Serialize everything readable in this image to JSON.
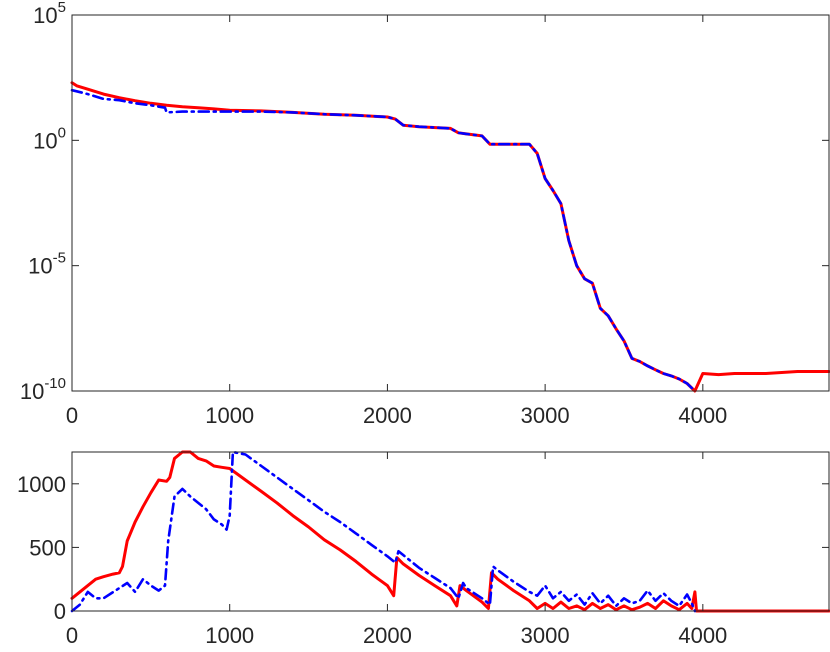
{
  "chart_data": [
    {
      "type": "line",
      "yscale": "log",
      "xlim": [
        0,
        4800
      ],
      "ylim": [
        1e-10,
        100000.0
      ],
      "xticks": [
        0,
        1000,
        2000,
        3000,
        4000
      ],
      "xtick_labels": [
        "0",
        "1000",
        "2000",
        "3000",
        "4000"
      ],
      "yticks": [
        1e-10,
        1e-05,
        1,
        100000.0
      ],
      "ytick_labels": [
        {
          "base": "10",
          "exp": "-10"
        },
        {
          "base": "10",
          "exp": "-5"
        },
        {
          "base": "10",
          "exp": "0"
        },
        {
          "base": "10",
          "exp": "5"
        }
      ],
      "grid": false,
      "series": [
        {
          "color": "#ff0000",
          "style": "solid",
          "x": [
            0,
            30,
            100,
            200,
            300,
            400,
            500,
            600,
            700,
            800,
            900,
            1000,
            1200,
            1400,
            1600,
            1800,
            2000,
            2050,
            2100,
            2200,
            2400,
            2450,
            2500,
            2600,
            2650,
            2700,
            2800,
            2900,
            2950,
            3000,
            3050,
            3100,
            3150,
            3200,
            3250,
            3300,
            3350,
            3400,
            3450,
            3500,
            3550,
            3600,
            3650,
            3700,
            3750,
            3800,
            3850,
            3900,
            3950,
            4000,
            4100,
            4200,
            4400,
            4600,
            4800
          ],
          "y": [
            200,
            150,
            110,
            70,
            50,
            38,
            30,
            25,
            22,
            20,
            18,
            16,
            15,
            13,
            11,
            10,
            8.5,
            7,
            4,
            3.5,
            3.0,
            2.0,
            1.8,
            1.5,
            0.7,
            0.7,
            0.7,
            0.7,
            0.3,
            0.03,
            0.01,
            0.003,
            0.0001,
            1e-05,
            3e-06,
            2e-06,
            2e-07,
            1e-07,
            3e-08,
            1e-08,
            2e-09,
            1.5e-09,
            1e-09,
            7e-10,
            5e-10,
            4e-10,
            3e-10,
            2e-10,
            1e-10,
            5e-10,
            4.5e-10,
            5e-10,
            5e-10,
            6e-10,
            6e-10
          ]
        },
        {
          "color": "#0000ff",
          "style": "dashdot",
          "x": [
            0,
            30,
            100,
            200,
            300,
            400,
            500,
            590,
            600,
            700,
            800,
            900,
            1000,
            1200,
            1400,
            1600,
            1800,
            2000,
            2050,
            2100,
            2200,
            2400,
            2450,
            2500,
            2600,
            2650,
            2700,
            2800,
            2900,
            2950,
            3000,
            3050,
            3100,
            3150,
            3200,
            3250,
            3300,
            3350,
            3400,
            3450,
            3500,
            3550,
            3600,
            3650,
            3700,
            3750,
            3800,
            3850,
            3900,
            3950
          ],
          "y": [
            100,
            90,
            70,
            45,
            40,
            30,
            25,
            20,
            13,
            14,
            14,
            14,
            14,
            14,
            13,
            11,
            10,
            8.5,
            7,
            4,
            3.5,
            3.0,
            2.0,
            1.8,
            1.5,
            0.7,
            0.7,
            0.7,
            0.7,
            0.3,
            0.03,
            0.01,
            0.003,
            0.0001,
            1e-05,
            3e-06,
            2e-06,
            2e-07,
            1e-07,
            3e-08,
            1e-08,
            2e-09,
            1.5e-09,
            1e-09,
            7e-10,
            5e-10,
            4e-10,
            3e-10,
            2e-10,
            1e-10
          ]
        }
      ]
    },
    {
      "type": "line",
      "xlim": [
        0,
        4800
      ],
      "ylim": [
        0,
        1250
      ],
      "xticks": [
        0,
        1000,
        2000,
        3000,
        4000
      ],
      "xtick_labels": [
        "0",
        "1000",
        "2000",
        "3000",
        "4000"
      ],
      "yticks": [
        0,
        500,
        1000
      ],
      "ytick_labels": [
        "0",
        "500",
        "1000"
      ],
      "grid": false,
      "series": [
        {
          "color": "#ff0000",
          "style": "solid",
          "x": [
            0,
            50,
            100,
            150,
            200,
            260,
            300,
            320,
            350,
            400,
            450,
            500,
            550,
            600,
            620,
            650,
            700,
            750,
            800,
            850,
            900,
            950,
            1000,
            1100,
            1200,
            1300,
            1400,
            1500,
            1600,
            1700,
            1800,
            1900,
            2000,
            2040,
            2060,
            2100,
            2200,
            2300,
            2400,
            2440,
            2460,
            2500,
            2600,
            2640,
            2660,
            2700,
            2800,
            2900,
            2950,
            3000,
            3050,
            3100,
            3150,
            3200,
            3250,
            3300,
            3350,
            3400,
            3450,
            3500,
            3550,
            3600,
            3650,
            3700,
            3750,
            3800,
            3850,
            3900,
            3930,
            3950,
            3960,
            4000,
            4200,
            4400,
            4600,
            4800
          ],
          "y": [
            100,
            150,
            200,
            250,
            270,
            290,
            300,
            350,
            550,
            700,
            820,
            930,
            1030,
            1020,
            1050,
            1200,
            1270,
            1250,
            1200,
            1180,
            1140,
            1130,
            1120,
            1030,
            940,
            850,
            750,
            660,
            560,
            480,
            390,
            290,
            200,
            120,
            420,
            370,
            280,
            200,
            120,
            40,
            200,
            160,
            70,
            20,
            300,
            250,
            160,
            80,
            20,
            60,
            20,
            70,
            20,
            40,
            10,
            60,
            20,
            50,
            10,
            40,
            10,
            30,
            60,
            20,
            80,
            40,
            10,
            60,
            20,
            150,
            0,
            0,
            0,
            0,
            0,
            0
          ]
        },
        {
          "color": "#0000ff",
          "style": "dashdot",
          "x": [
            0,
            50,
            100,
            150,
            200,
            300,
            350,
            400,
            450,
            500,
            550,
            590,
            610,
            650,
            700,
            750,
            800,
            850,
            900,
            950,
            980,
            1000,
            1020,
            1100,
            1200,
            1300,
            1400,
            1500,
            1600,
            1700,
            1800,
            1900,
            2000,
            2050,
            2070,
            2100,
            2200,
            2300,
            2400,
            2450,
            2480,
            2500,
            2600,
            2650,
            2670,
            2700,
            2800,
            2900,
            2950,
            3000,
            3050,
            3100,
            3150,
            3200,
            3250,
            3300,
            3350,
            3400,
            3450,
            3500,
            3550,
            3600,
            3650,
            3700,
            3750,
            3800,
            3850,
            3900,
            3930,
            3950
          ],
          "y": [
            0,
            50,
            150,
            100,
            100,
            180,
            220,
            150,
            250,
            200,
            160,
            200,
            550,
            900,
            960,
            900,
            850,
            800,
            720,
            680,
            640,
            750,
            1280,
            1230,
            1140,
            1050,
            960,
            870,
            780,
            700,
            610,
            520,
            430,
            380,
            470,
            440,
            340,
            260,
            180,
            100,
            220,
            180,
            100,
            50,
            350,
            320,
            230,
            150,
            120,
            200,
            100,
            150,
            80,
            130,
            50,
            140,
            60,
            120,
            40,
            100,
            60,
            80,
            160,
            80,
            140,
            80,
            40,
            130,
            60,
            0
          ]
        }
      ]
    }
  ]
}
